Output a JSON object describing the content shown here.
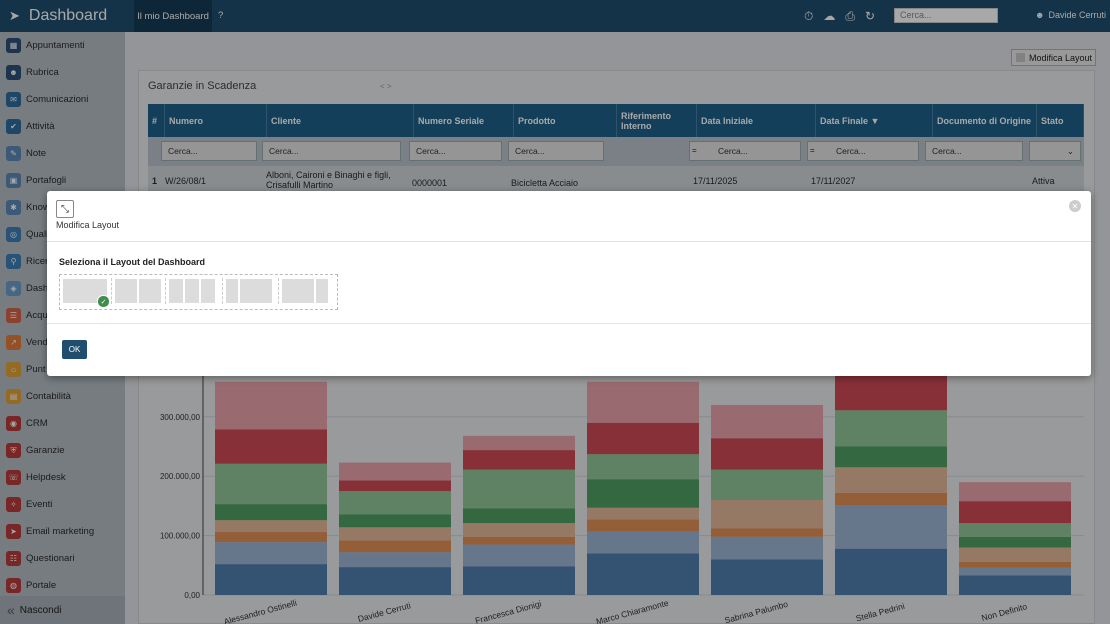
{
  "topbar": {
    "app_title": "Dashboard",
    "tab_active": "Il mio Dashboard",
    "help": "?",
    "search_placeholder": "Cerca...",
    "user_name": "Davide Cerruti"
  },
  "sidebar": {
    "items": [
      "Appuntamenti",
      "Rubrica",
      "Comunicazioni",
      "Attività",
      "Note",
      "Portafogli",
      "Know",
      "Quali",
      "Ricer",
      "Dashb",
      "Acqu",
      "Vend",
      "Punt",
      "Contabilità",
      "CRM",
      "Garanzie",
      "Helpdesk",
      "Eventi",
      "Email marketing",
      "Questionari",
      "Portale"
    ],
    "hide_label": "Nascondi"
  },
  "main": {
    "modify_layout_label": "Modifica Layout",
    "panel_title": "Garanzie in Scadenza"
  },
  "table": {
    "columns": [
      "#",
      "Numero",
      "Cliente",
      "Numero Seriale",
      "Prodotto",
      "Riferimento Interno",
      "Data Iniziale",
      "Data Finale",
      "Documento di Origine",
      "Stato"
    ],
    "filter_placeholder": "Cerca...",
    "filter_op": "=",
    "row": {
      "idx": "1",
      "numero": "W/26/08/1",
      "cliente": "Alboni, Caironi e Binaghi e figli, Crisafulli Martino",
      "seriale": "0000001",
      "prodotto": "Bicicletta Acciaio",
      "rif": "",
      "data_iniziale": "17/11/2025",
      "data_finale": "17/11/2027",
      "documento": "",
      "stato": "Attiva"
    }
  },
  "modal": {
    "title": "Modifica Layout",
    "label": "Seleziona il Layout del Dashboard",
    "ok_label": "OK"
  },
  "chart_data": {
    "type": "bar",
    "categories": [
      "Alessandro Ostinelli",
      "Davide Cerruti",
      "Francesca Dionigi",
      "Marco Chiaramonte",
      "Sabrina Palumbo",
      "Stella Pedrini",
      "Non Definito"
    ],
    "ytick_labels": [
      "0,00",
      "100.000,00",
      "200.000,00",
      "300.000,00"
    ],
    "ylim": [
      0,
      400000
    ],
    "series": [
      {
        "color": "#4f7fae",
        "values": [
          52000,
          47000,
          48000,
          70000,
          60000,
          78000,
          33000
        ]
      },
      {
        "color": "#9cb3d3",
        "values": [
          37000,
          25000,
          37000,
          37000,
          38000,
          73000,
          13000
        ]
      },
      {
        "color": "#e08f55",
        "values": [
          17000,
          20000,
          13000,
          20000,
          14000,
          21000,
          10000
        ]
      },
      {
        "color": "#e3b89a",
        "values": [
          20000,
          22000,
          23000,
          20000,
          48000,
          43000,
          24000
        ]
      },
      {
        "color": "#4e9e62",
        "values": [
          27000,
          22000,
          25000,
          48000,
          0,
          35000,
          18000
        ]
      },
      {
        "color": "#8fc596",
        "values": [
          68000,
          39000,
          65000,
          42000,
          51000,
          61000,
          23000
        ]
      },
      {
        "color": "#cf4a56",
        "values": [
          58000,
          18000,
          33000,
          53000,
          53000,
          95000,
          37000
        ]
      },
      {
        "color": "#e8a3ac",
        "values": [
          80000,
          30000,
          24000,
          69000,
          56000,
          0,
          32000
        ]
      }
    ]
  }
}
